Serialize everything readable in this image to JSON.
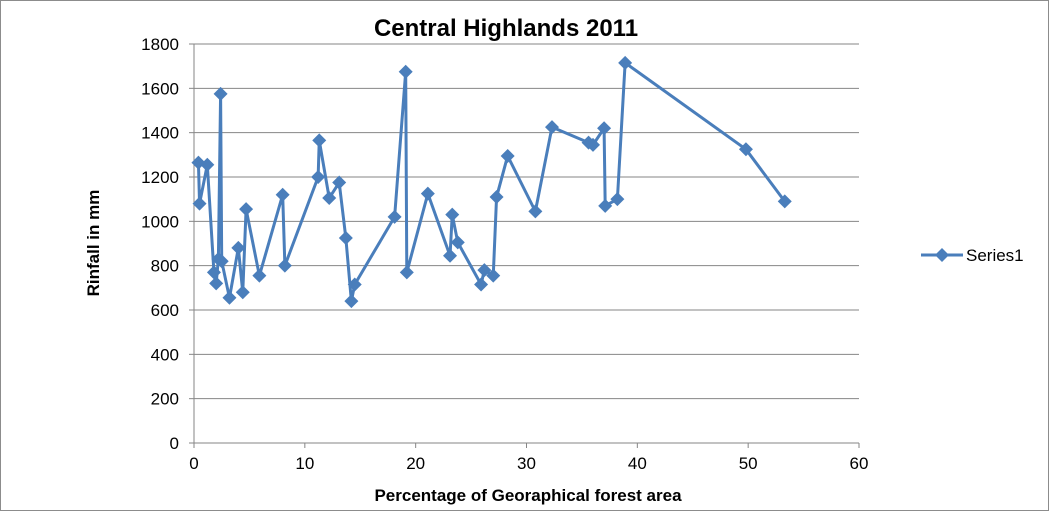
{
  "chart_data": {
    "type": "scatter",
    "title": "Central Highlands 2011",
    "xlabel": "Percentage of Georaphical forest area",
    "ylabel": "Rinfall in mm",
    "xlim": [
      0,
      60
    ],
    "ylim": [
      0,
      1800
    ],
    "x_ticks": [
      0,
      10,
      20,
      30,
      40,
      50,
      60
    ],
    "y_ticks": [
      0,
      200,
      400,
      600,
      800,
      1000,
      1200,
      1400,
      1600,
      1800
    ],
    "grid": "horizontal major gridlines",
    "legend_position": "right",
    "series": [
      {
        "name": "Series1",
        "color": "#4a7ebb",
        "marker": "diamond",
        "line": true,
        "points": [
          [
            0.4,
            1265
          ],
          [
            0.5,
            1080
          ],
          [
            1.2,
            1255
          ],
          [
            1.8,
            770
          ],
          [
            2.0,
            720
          ],
          [
            2.2,
            830
          ],
          [
            2.4,
            1575
          ],
          [
            2.5,
            820
          ],
          [
            3.2,
            655
          ],
          [
            4.0,
            880
          ],
          [
            4.4,
            680
          ],
          [
            4.7,
            1055
          ],
          [
            5.9,
            755
          ],
          [
            8.0,
            1120
          ],
          [
            8.2,
            800
          ],
          [
            11.2,
            1200
          ],
          [
            11.3,
            1365
          ],
          [
            12.2,
            1105
          ],
          [
            13.1,
            1175
          ],
          [
            13.7,
            925
          ],
          [
            14.2,
            640
          ],
          [
            14.5,
            715
          ],
          [
            18.1,
            1020
          ],
          [
            19.1,
            1675
          ],
          [
            19.2,
            770
          ],
          [
            21.1,
            1125
          ],
          [
            23.1,
            845
          ],
          [
            23.3,
            1030
          ],
          [
            23.8,
            905
          ],
          [
            25.9,
            715
          ],
          [
            26.2,
            780
          ],
          [
            27.0,
            755
          ],
          [
            27.3,
            1110
          ],
          [
            28.3,
            1295
          ],
          [
            30.8,
            1045
          ],
          [
            32.3,
            1425
          ],
          [
            35.6,
            1355
          ],
          [
            36.0,
            1345
          ],
          [
            37.0,
            1420
          ],
          [
            37.1,
            1070
          ],
          [
            38.2,
            1100
          ],
          [
            38.9,
            1715
          ],
          [
            49.8,
            1325
          ],
          [
            53.3,
            1090
          ]
        ]
      }
    ]
  }
}
